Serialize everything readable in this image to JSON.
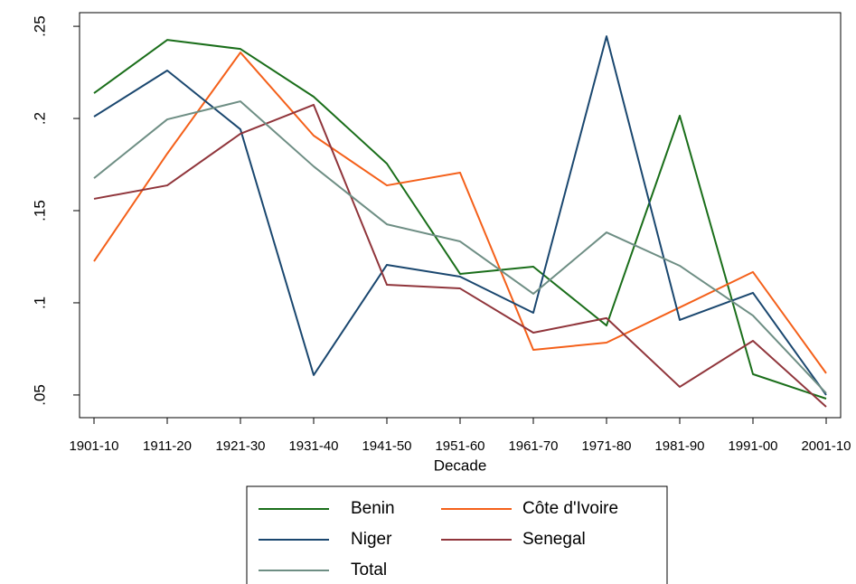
{
  "chart_data": {
    "type": "line",
    "x_label": "Decade",
    "categories": [
      "1901-10",
      "1911-20",
      "1921-30",
      "1931-40",
      "1941-50",
      "1951-60",
      "1961-70",
      "1971-80",
      "1981-90",
      "1991-00",
      "2001-10"
    ],
    "series": [
      {
        "name": "Benin",
        "color": "#1a6e1a",
        "values": [
          0.2137,
          0.2426,
          0.2377,
          0.2118,
          0.1755,
          0.1157,
          0.1196,
          0.0877,
          0.2015,
          0.0613,
          0.048
        ]
      },
      {
        "name": "Côte d'Ivoire",
        "color": "#f4601a",
        "values": [
          0.1225,
          0.1809,
          0.2358,
          0.1907,
          0.1637,
          0.1706,
          0.0745,
          0.0784,
          0.0975,
          0.1167,
          0.0618
        ]
      },
      {
        "name": "Niger",
        "color": "#1a476f",
        "values": [
          0.201,
          0.226,
          0.1941,
          0.0608,
          0.1206,
          0.1142,
          0.0946,
          0.2446,
          0.0907,
          0.1054,
          0.05
        ]
      },
      {
        "name": "Senegal",
        "color": "#90353b",
        "values": [
          0.1564,
          0.1637,
          0.1917,
          0.2074,
          0.1098,
          0.1078,
          0.0838,
          0.0917,
          0.0544,
          0.0794,
          0.0436
        ]
      },
      {
        "name": "Total",
        "color": "#6e8e84",
        "values": [
          0.1676,
          0.1995,
          0.2093,
          0.174,
          0.1426,
          0.1333,
          0.1049,
          0.1382,
          0.1201,
          0.0931,
          0.051
        ]
      }
    ],
    "ylim": [
      0.0377,
      0.2574
    ],
    "yticks": [
      {
        "value": 0.05,
        "label": ".05"
      },
      {
        "value": 0.1,
        "label": ".1"
      },
      {
        "value": 0.15,
        "label": ".15"
      },
      {
        "value": 0.2,
        "label": ".2"
      },
      {
        "value": 0.25,
        "label": ".25"
      }
    ],
    "legend": "bottom",
    "grid": false
  }
}
